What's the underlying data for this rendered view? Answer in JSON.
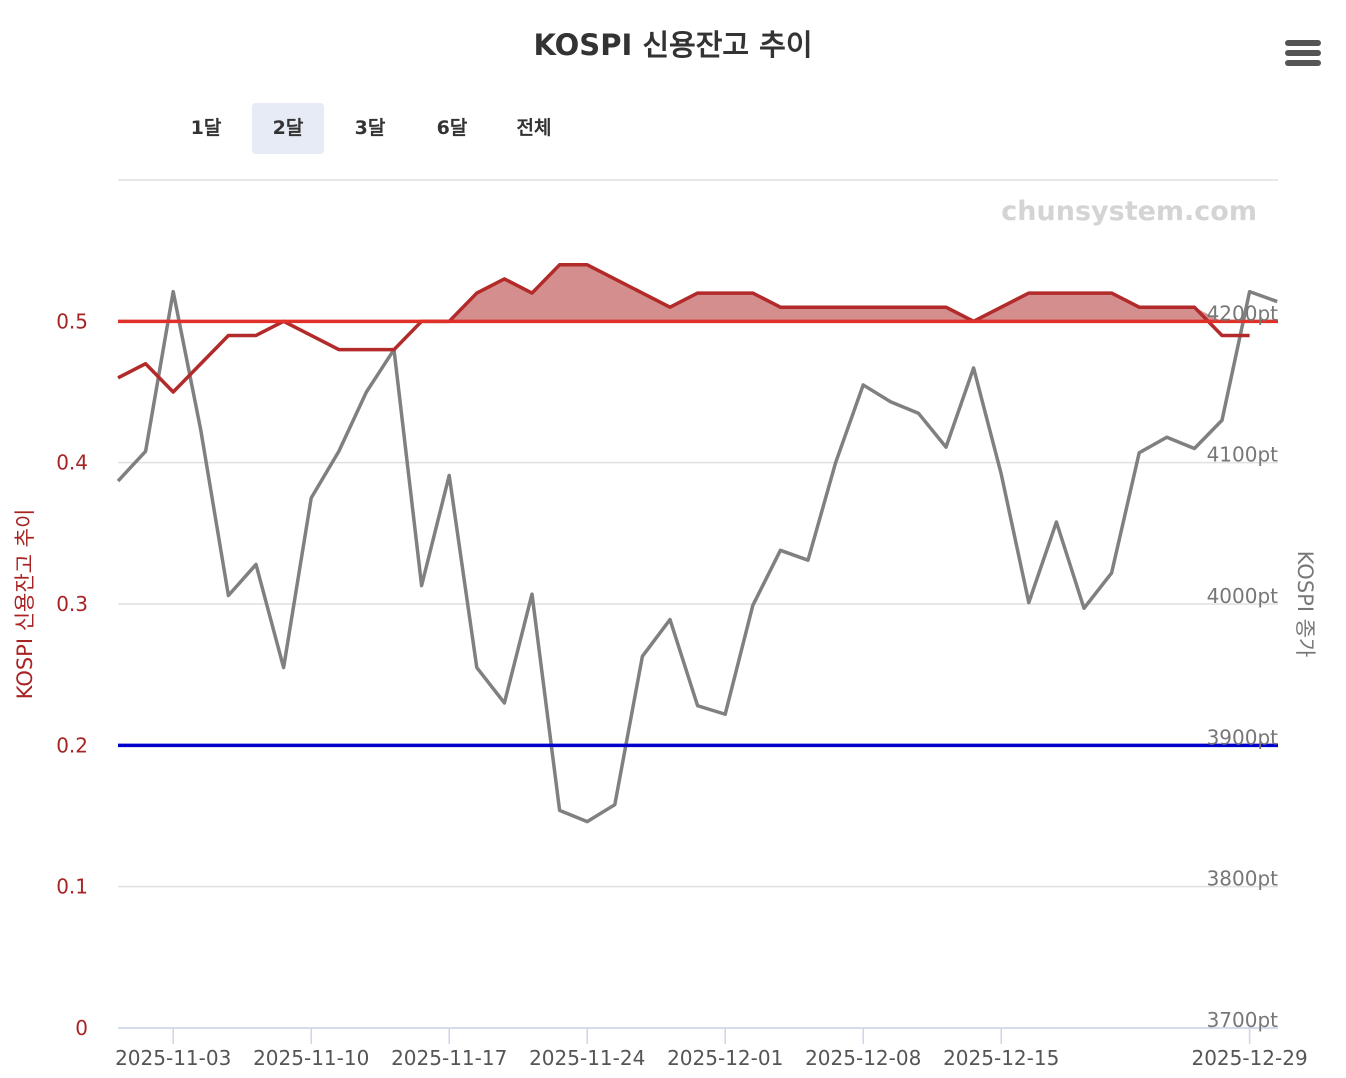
{
  "menu_icon": "hamburger-menu-icon",
  "range_selector": {
    "buttons": [
      "1달",
      "2달",
      "3달",
      "6달",
      "전체"
    ],
    "selected": "2달"
  },
  "colors": {
    "credit_line": "#b22a2a",
    "credit_fill": "#d48e8e",
    "kospi_line": "#808080",
    "upper_threshold": "#e0302a",
    "lower_threshold": "#0000cc",
    "left_axis_text": "#a82424",
    "right_axis_text": "#777777"
  },
  "chart_data": {
    "type": "line",
    "title": "KOSPI 신용잔고 추이",
    "watermark": "chunsystem.com",
    "y_left": {
      "label": "KOSPI 신용잔고 추이",
      "ticks": [
        "0",
        "0.1",
        "0.2",
        "0.3",
        "0.4",
        "0.5"
      ],
      "range": [
        0,
        0.6
      ]
    },
    "y_right": {
      "label": "KOSPI 종가",
      "ticks": [
        "3700pt",
        "3800pt",
        "3900pt",
        "4000pt",
        "4100pt",
        "4200pt"
      ],
      "range": [
        3700,
        4300
      ]
    },
    "x_tick_labels": [
      "2025-11-03",
      "2025-11-10",
      "2025-11-17",
      "2025-11-24",
      "2025-12-01",
      "2025-12-08",
      "2025-12-15",
      "2025-12-29"
    ],
    "x_tick_index": [
      2,
      7,
      12,
      17,
      22,
      27,
      32,
      41
    ],
    "plot_lines": [
      {
        "value": 0.5,
        "color": "#e0302a"
      },
      {
        "value": 0.2,
        "color": "#0000cc"
      }
    ],
    "series": [
      {
        "axis": "left",
        "values": [
          0.46,
          0.47,
          0.45,
          0.47,
          0.49,
          0.49,
          0.5,
          0.49,
          0.48,
          0.48,
          0.48,
          0.5,
          0.5,
          0.52,
          0.53,
          0.52,
          0.54,
          0.54,
          0.53,
          0.52,
          0.51,
          0.52,
          0.52,
          0.52,
          0.51,
          0.51,
          0.51,
          0.51,
          0.51,
          0.51,
          0.51,
          0.5,
          0.51,
          0.52,
          0.52,
          0.52,
          0.52,
          0.51,
          0.51,
          0.51,
          0.49,
          0.49
        ]
      },
      {
        "axis": "right",
        "name": "KOSPI 종가",
        "values": [
          4087,
          4108,
          4221,
          4123,
          4006,
          4028,
          3955,
          4075,
          4108,
          4150,
          4180,
          4013,
          4091,
          3955,
          3930,
          4007,
          3854,
          3846,
          3858,
          3963,
          3989,
          3928,
          3922,
          3999,
          4038,
          4031,
          4100,
          4155,
          4143,
          4135,
          4111,
          4167,
          4092,
          4001,
          4058,
          3997,
          4022,
          4107,
          4118,
          4110,
          4130,
          4221,
          4214
        ]
      }
    ]
  }
}
